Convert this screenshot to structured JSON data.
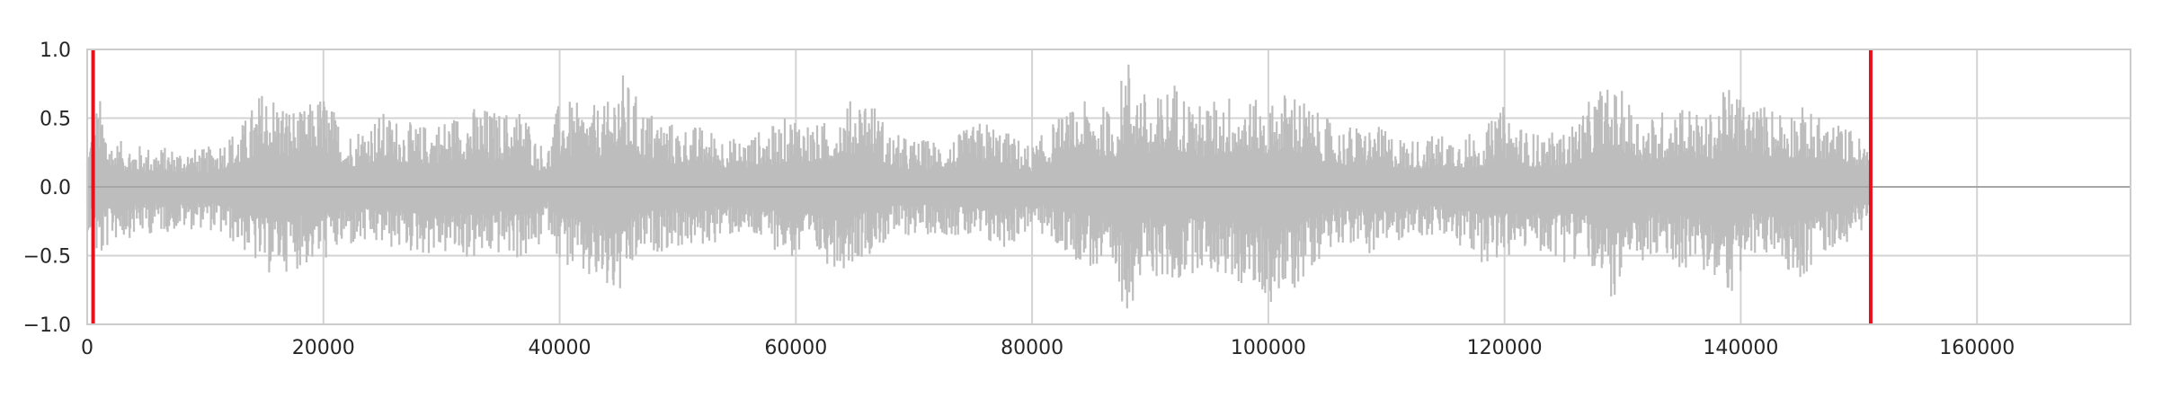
{
  "chart_data": {
    "type": "line",
    "title": "",
    "xlabel": "",
    "ylabel": "",
    "xlim": [
      0,
      173000
    ],
    "ylim": [
      -1.0,
      1.0
    ],
    "x_ticks": [
      0,
      20000,
      40000,
      60000,
      80000,
      100000,
      120000,
      140000,
      160000
    ],
    "x_tick_labels": [
      "0",
      "20000",
      "40000",
      "60000",
      "80000",
      "100000",
      "120000",
      "140000",
      "160000"
    ],
    "y_ticks": [
      1.0,
      0.5,
      0.0,
      -0.5,
      -1.0
    ],
    "y_tick_labels": [
      "1.0",
      "0.5",
      "0.0",
      "−1.0"
    ],
    "y_tick_labels_full": [
      "1.0",
      "0.5",
      "0.0",
      "−0.5",
      "−1.0"
    ],
    "grid": true,
    "legend": "none",
    "series": [
      {
        "style": "waveform",
        "color": "#bdbdbd",
        "x_start": 0,
        "x_end": 151000,
        "envelope": {
          "x": [
            0,
            1000,
            2000,
            5000,
            10000,
            13000,
            15000,
            18000,
            20000,
            22000,
            25000,
            28000,
            30000,
            33000,
            35000,
            37000,
            38000,
            39000,
            40000,
            42000,
            44000,
            45000,
            47000,
            50000,
            52000,
            55000,
            58000,
            60000,
            62000,
            64000,
            66000,
            68000,
            70000,
            73000,
            76000,
            78000,
            80000,
            82000,
            85000,
            87000,
            88000,
            90000,
            92000,
            94000,
            97000,
            100000,
            102000,
            104000,
            106000,
            109000,
            112000,
            115000,
            118000,
            120000,
            122000,
            125000,
            127000,
            128000,
            130000,
            132000,
            135000,
            137000,
            139000,
            141000,
            143000,
            145000,
            147000,
            149000,
            151000
          ],
          "upper": [
            0.3,
            0.68,
            0.35,
            0.3,
            0.28,
            0.45,
            0.75,
            0.55,
            0.7,
            0.4,
            0.55,
            0.45,
            0.5,
            0.6,
            0.55,
            0.6,
            0.35,
            0.3,
            0.65,
            0.6,
            0.6,
            0.88,
            0.6,
            0.45,
            0.45,
            0.35,
            0.45,
            0.55,
            0.45,
            0.6,
            0.72,
            0.4,
            0.35,
            0.35,
            0.5,
            0.4,
            0.3,
            0.5,
            0.65,
            0.55,
            1.0,
            0.6,
            0.8,
            0.6,
            0.7,
            0.6,
            0.75,
            0.55,
            0.45,
            0.45,
            0.35,
            0.4,
            0.4,
            0.6,
            0.4,
            0.4,
            0.6,
            0.75,
            0.7,
            0.5,
            0.65,
            0.5,
            0.75,
            0.62,
            0.6,
            0.6,
            0.5,
            0.45,
            0.3
          ],
          "lower": [
            -0.3,
            -0.6,
            -0.4,
            -0.35,
            -0.3,
            -0.45,
            -0.65,
            -0.6,
            -0.55,
            -0.45,
            -0.45,
            -0.5,
            -0.5,
            -0.55,
            -0.5,
            -0.55,
            -0.5,
            -0.3,
            -0.55,
            -0.7,
            -0.8,
            -0.85,
            -0.5,
            -0.45,
            -0.45,
            -0.35,
            -0.45,
            -0.55,
            -0.55,
            -0.6,
            -0.5,
            -0.4,
            -0.35,
            -0.35,
            -0.45,
            -0.45,
            -0.3,
            -0.45,
            -0.6,
            -0.8,
            -0.9,
            -0.65,
            -0.75,
            -0.6,
            -0.7,
            -0.85,
            -0.8,
            -0.55,
            -0.4,
            -0.5,
            -0.35,
            -0.4,
            -0.55,
            -0.55,
            -0.45,
            -0.55,
            -0.5,
            -0.9,
            -0.75,
            -0.55,
            -0.6,
            -0.65,
            -0.8,
            -0.55,
            -0.5,
            -0.7,
            -0.5,
            -0.4,
            -0.3
          ]
        }
      }
    ],
    "markers": [
      {
        "type": "vline",
        "x": 500,
        "color": "#e8101a"
      },
      {
        "type": "vline",
        "x": 151000,
        "color": "#e8101a"
      }
    ],
    "colors": {
      "grid": "#d3d3d3",
      "axis_frame": "#cccccc",
      "zero_line": "#a6a6a6",
      "tick_text": "#262626"
    }
  }
}
